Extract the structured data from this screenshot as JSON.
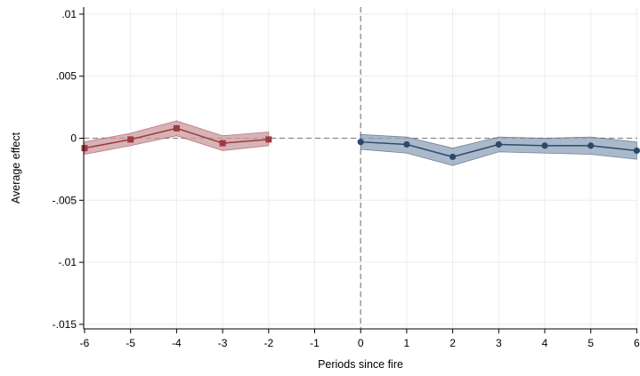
{
  "chart_data": {
    "type": "line",
    "title": "",
    "xlabel": "Periods since fire",
    "ylabel": "Average effect",
    "xlim": [
      -6,
      6
    ],
    "ylim": [
      -0.015,
      0.01
    ],
    "x_ticks": [
      "-6",
      "-5",
      "-4",
      "-3",
      "-2",
      "-1",
      "0",
      "1",
      "2",
      "3",
      "4",
      "5",
      "6"
    ],
    "y_ticks": [
      ".01",
      ".005",
      "0",
      "-.005",
      "-.01",
      "-.015"
    ],
    "y_tick_values": [
      0.01,
      0.005,
      0,
      -0.005,
      -0.01,
      -0.015
    ],
    "grid": true,
    "reference_lines": {
      "y": 0,
      "x": 0,
      "style": "dashed"
    },
    "series": [
      {
        "color": "#9e3a3f",
        "band_color": "#c99a9e",
        "marker": "square",
        "x": [
          -6,
          -5,
          -4,
          -3,
          -2
        ],
        "values": [
          -0.0008,
          -0.0001,
          0.0008,
          -0.0004,
          -0.0001
        ],
        "ci_low": [
          -0.0013,
          -0.0006,
          0.0002,
          -0.001,
          -0.0006
        ],
        "ci_high": [
          -0.0003,
          0.0004,
          0.0014,
          0.0002,
          0.0005
        ]
      },
      {
        "color": "#2b4a6b",
        "band_color": "#8ea1b8",
        "marker": "circle",
        "x": [
          0,
          1,
          2,
          3,
          4,
          5,
          6
        ],
        "values": [
          -0.0003,
          -0.0005,
          -0.0015,
          -0.0005,
          -0.0006,
          -0.0006,
          -0.001
        ],
        "ci_low": [
          -0.0009,
          -0.0012,
          -0.0022,
          -0.0011,
          -0.0012,
          -0.0013,
          -0.0017
        ],
        "ci_high": [
          0.0003,
          0.0001,
          -0.0008,
          0.0001,
          0.0,
          0.0001,
          -0.0003
        ]
      }
    ]
  }
}
